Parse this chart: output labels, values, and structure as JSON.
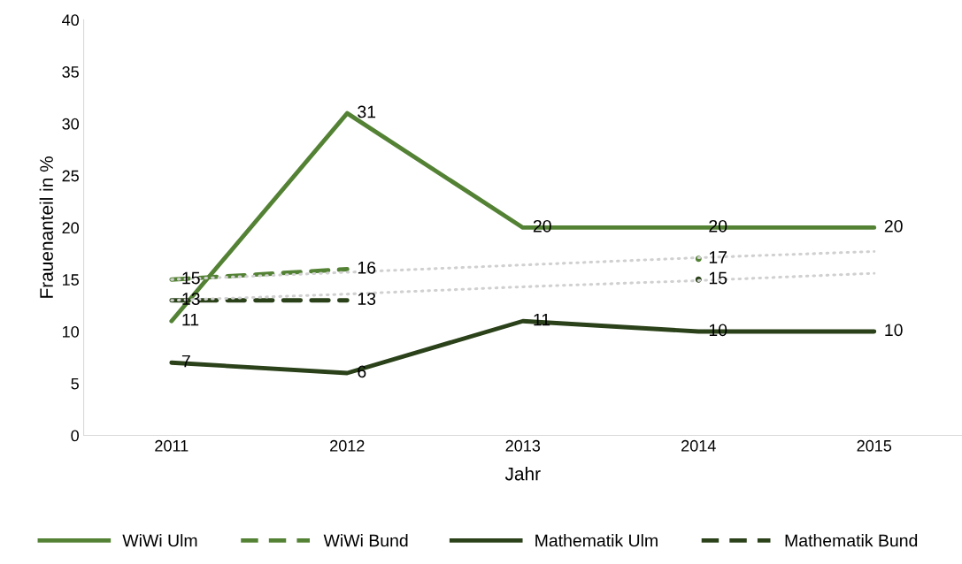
{
  "chart_data": {
    "type": "line",
    "xlabel": "Jahr",
    "ylabel": "Frauenanteil in %",
    "categories": [
      "2011",
      "2012",
      "2013",
      "2014",
      "2015"
    ],
    "ylim": [
      0,
      40
    ],
    "yticks": [
      0,
      5,
      10,
      15,
      20,
      25,
      30,
      35,
      40
    ],
    "grid": false,
    "legend": "bottom",
    "marker": "none",
    "series": [
      {
        "name": "WiWi Ulm",
        "color": "#548235",
        "line_style": "solid",
        "values": [
          11,
          31,
          20,
          20,
          20
        ],
        "value_labels": [
          "11",
          "31",
          "20",
          "20",
          "20"
        ]
      },
      {
        "name": "WiWi Bund",
        "color": "#548235",
        "line_style": "dashed",
        "values": [
          15,
          16,
          null,
          17,
          null
        ],
        "value_labels": [
          "15",
          "16",
          null,
          "17",
          null
        ]
      },
      {
        "name": "Mathematik Ulm",
        "color": "#2a4119",
        "line_style": "solid",
        "values": [
          7,
          6,
          11,
          10,
          10
        ],
        "value_labels": [
          "7",
          "6",
          "11",
          "10",
          "10"
        ]
      },
      {
        "name": "Mathematik Bund",
        "color": "#2a4119",
        "line_style": "dashed",
        "values": [
          13,
          13,
          null,
          15,
          null
        ],
        "value_labels": [
          "13",
          "13",
          null,
          "15",
          null
        ]
      },
      {
        "type": "line",
        "color": "#d0d0d0",
        "line_style": "dotted",
        "values": [
          15.0,
          15.7,
          16.4,
          17.1,
          17.7
        ]
      },
      {
        "type": "line",
        "color": "#d0d0d0",
        "line_style": "dotted",
        "values": [
          13.0,
          13.6,
          14.3,
          14.9,
          15.6
        ]
      }
    ]
  }
}
